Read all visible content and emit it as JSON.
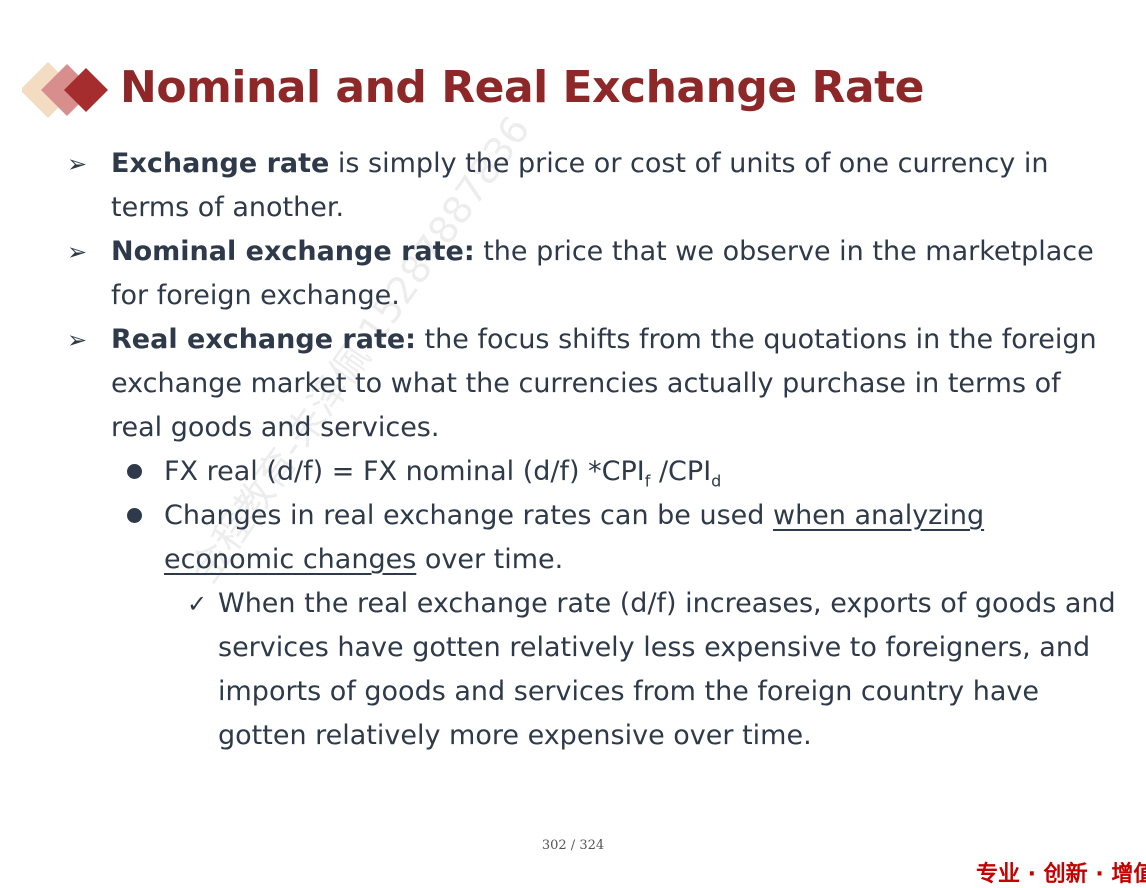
{
  "title": "Nominal and Real Exchange Rate",
  "colors": {
    "title": "#8e2828",
    "text": "#2e3a4a",
    "brand": "#c40000"
  },
  "watermark": "金程教育-朱泽佩 15287887836",
  "bullets": [
    {
      "bold": "Exchange rate",
      "text": " is simply the price or cost of units of one currency in terms of another."
    },
    {
      "bold": "Nominal exchange rate:",
      "text": " the price that we observe in the marketplace for foreign exchange."
    },
    {
      "bold": "Real exchange rate:",
      "text": " the focus shifts from the quotations in the foreign exchange market to what the currencies actually purchase in terms of real goods and services."
    }
  ],
  "sub_bullets": {
    "formula": {
      "pre": "FX real (d/f) = FX nominal (d/f) *CPI",
      "sub1": "f",
      "mid": " /CPI",
      "sub2": "d"
    },
    "changes": {
      "pre": "Changes in real exchange rates can be used ",
      "underlined": "when analyzing economic changes",
      "post": " over time."
    }
  },
  "check_item": "When the real exchange rate (d/f) increases, exports of goods and services have gotten relatively less expensive to foreigners, and imports of goods and services from the foreign country have gotten relatively more expensive over time.",
  "markers": {
    "arrow": "➢",
    "check": "✓"
  },
  "footer": {
    "page": "302 / 324"
  },
  "brand": "专业 · 创新 · 增值"
}
